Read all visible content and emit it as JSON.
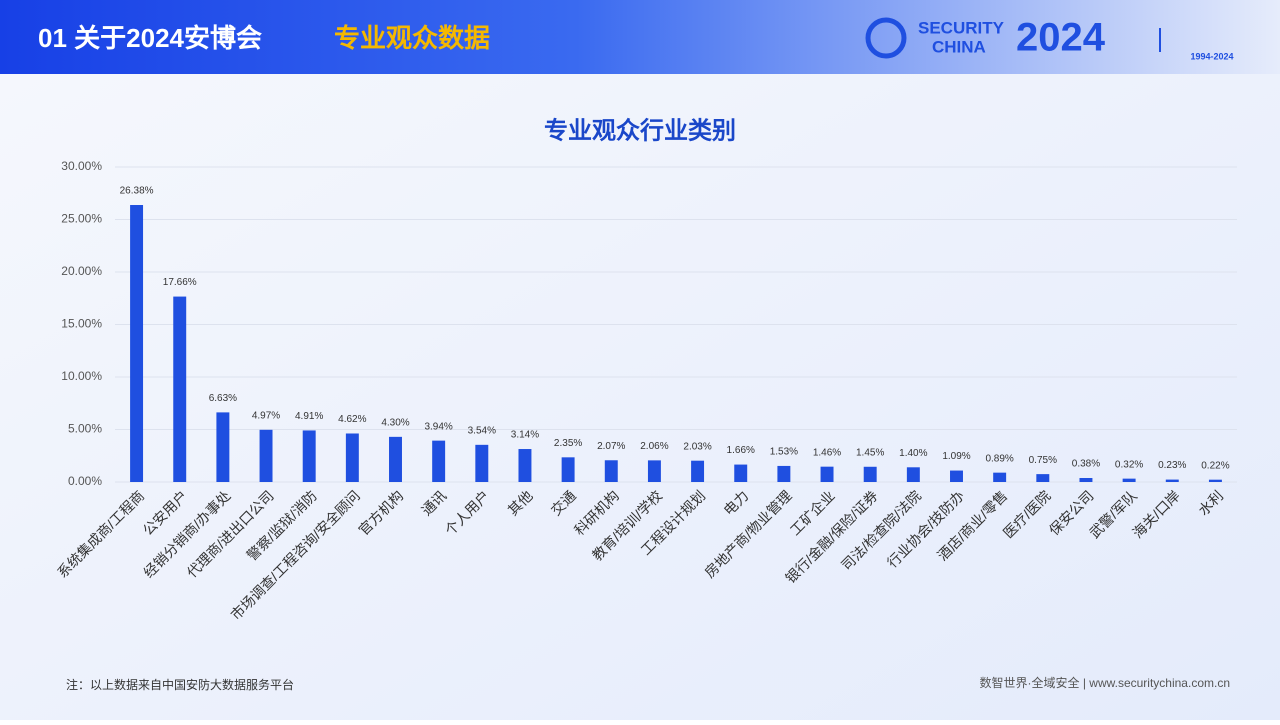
{
  "header": {
    "section": "01 关于2024安博会",
    "subtitle": "专业观众数据",
    "logo_top": "SECURITY",
    "logo_bottom": "CHINA",
    "logo_year": "2024",
    "anniversary_years": "1994-2024"
  },
  "chart_data": {
    "type": "bar",
    "title": "专业观众行业类别",
    "categories": [
      "系统集成商/工程商",
      "公安用户",
      "经销分销商/办事处",
      "代理商/进出口公司",
      "警察/监狱/消防",
      "市场调查/工程咨询/安全顾问",
      "官方机构",
      "通讯",
      "个人用户",
      "其他",
      "交通",
      "科研机构",
      "教育/培训/学校",
      "工程设计规划",
      "电力",
      "房地产商/物业管理",
      "工矿企业",
      "银行/金融/保险/证券",
      "司法/检查院/法院",
      "行业协会/技防办",
      "酒店/商业/零售",
      "医疗/医院",
      "保安公司",
      "武警/军队",
      "海关/口岸",
      "水利"
    ],
    "values": [
      26.38,
      17.66,
      6.63,
      4.97,
      4.91,
      4.62,
      4.3,
      3.94,
      3.54,
      3.14,
      2.35,
      2.07,
      2.06,
      2.03,
      1.66,
      1.53,
      1.46,
      1.45,
      1.4,
      1.09,
      0.89,
      0.75,
      0.38,
      0.32,
      0.23,
      0.22
    ],
    "value_labels": [
      "26.38%",
      "17.66%",
      "6.63%",
      "4.97%",
      "4.91%",
      "4.62%",
      "4.30%",
      "3.94%",
      "3.54%",
      "3.14%",
      "2.35%",
      "2.07%",
      "2.06%",
      "2.03%",
      "1.66%",
      "1.53%",
      "1.46%",
      "1.45%",
      "1.40%",
      "1.09%",
      "0.89%",
      "0.75%",
      "0.38%",
      "0.32%",
      "0.23%",
      "0.22%"
    ],
    "color": "#1f4fe0",
    "ylim": [
      0,
      30
    ],
    "yticks": [
      {
        "value": 0,
        "label": "0.00%"
      },
      {
        "value": 5,
        "label": "5.00%"
      },
      {
        "value": 10,
        "label": "10.00%"
      },
      {
        "value": 15,
        "label": "15.00%"
      },
      {
        "value": 20,
        "label": "20.00%"
      },
      {
        "value": 25,
        "label": "25.00%"
      },
      {
        "value": 30,
        "label": "30.00%"
      }
    ],
    "grid": true
  },
  "footer": {
    "note": "注：以上数据来自中国安防大数据服务平台",
    "slogan": "数智世界·全域安全 | www.securitychina.com.cn"
  }
}
